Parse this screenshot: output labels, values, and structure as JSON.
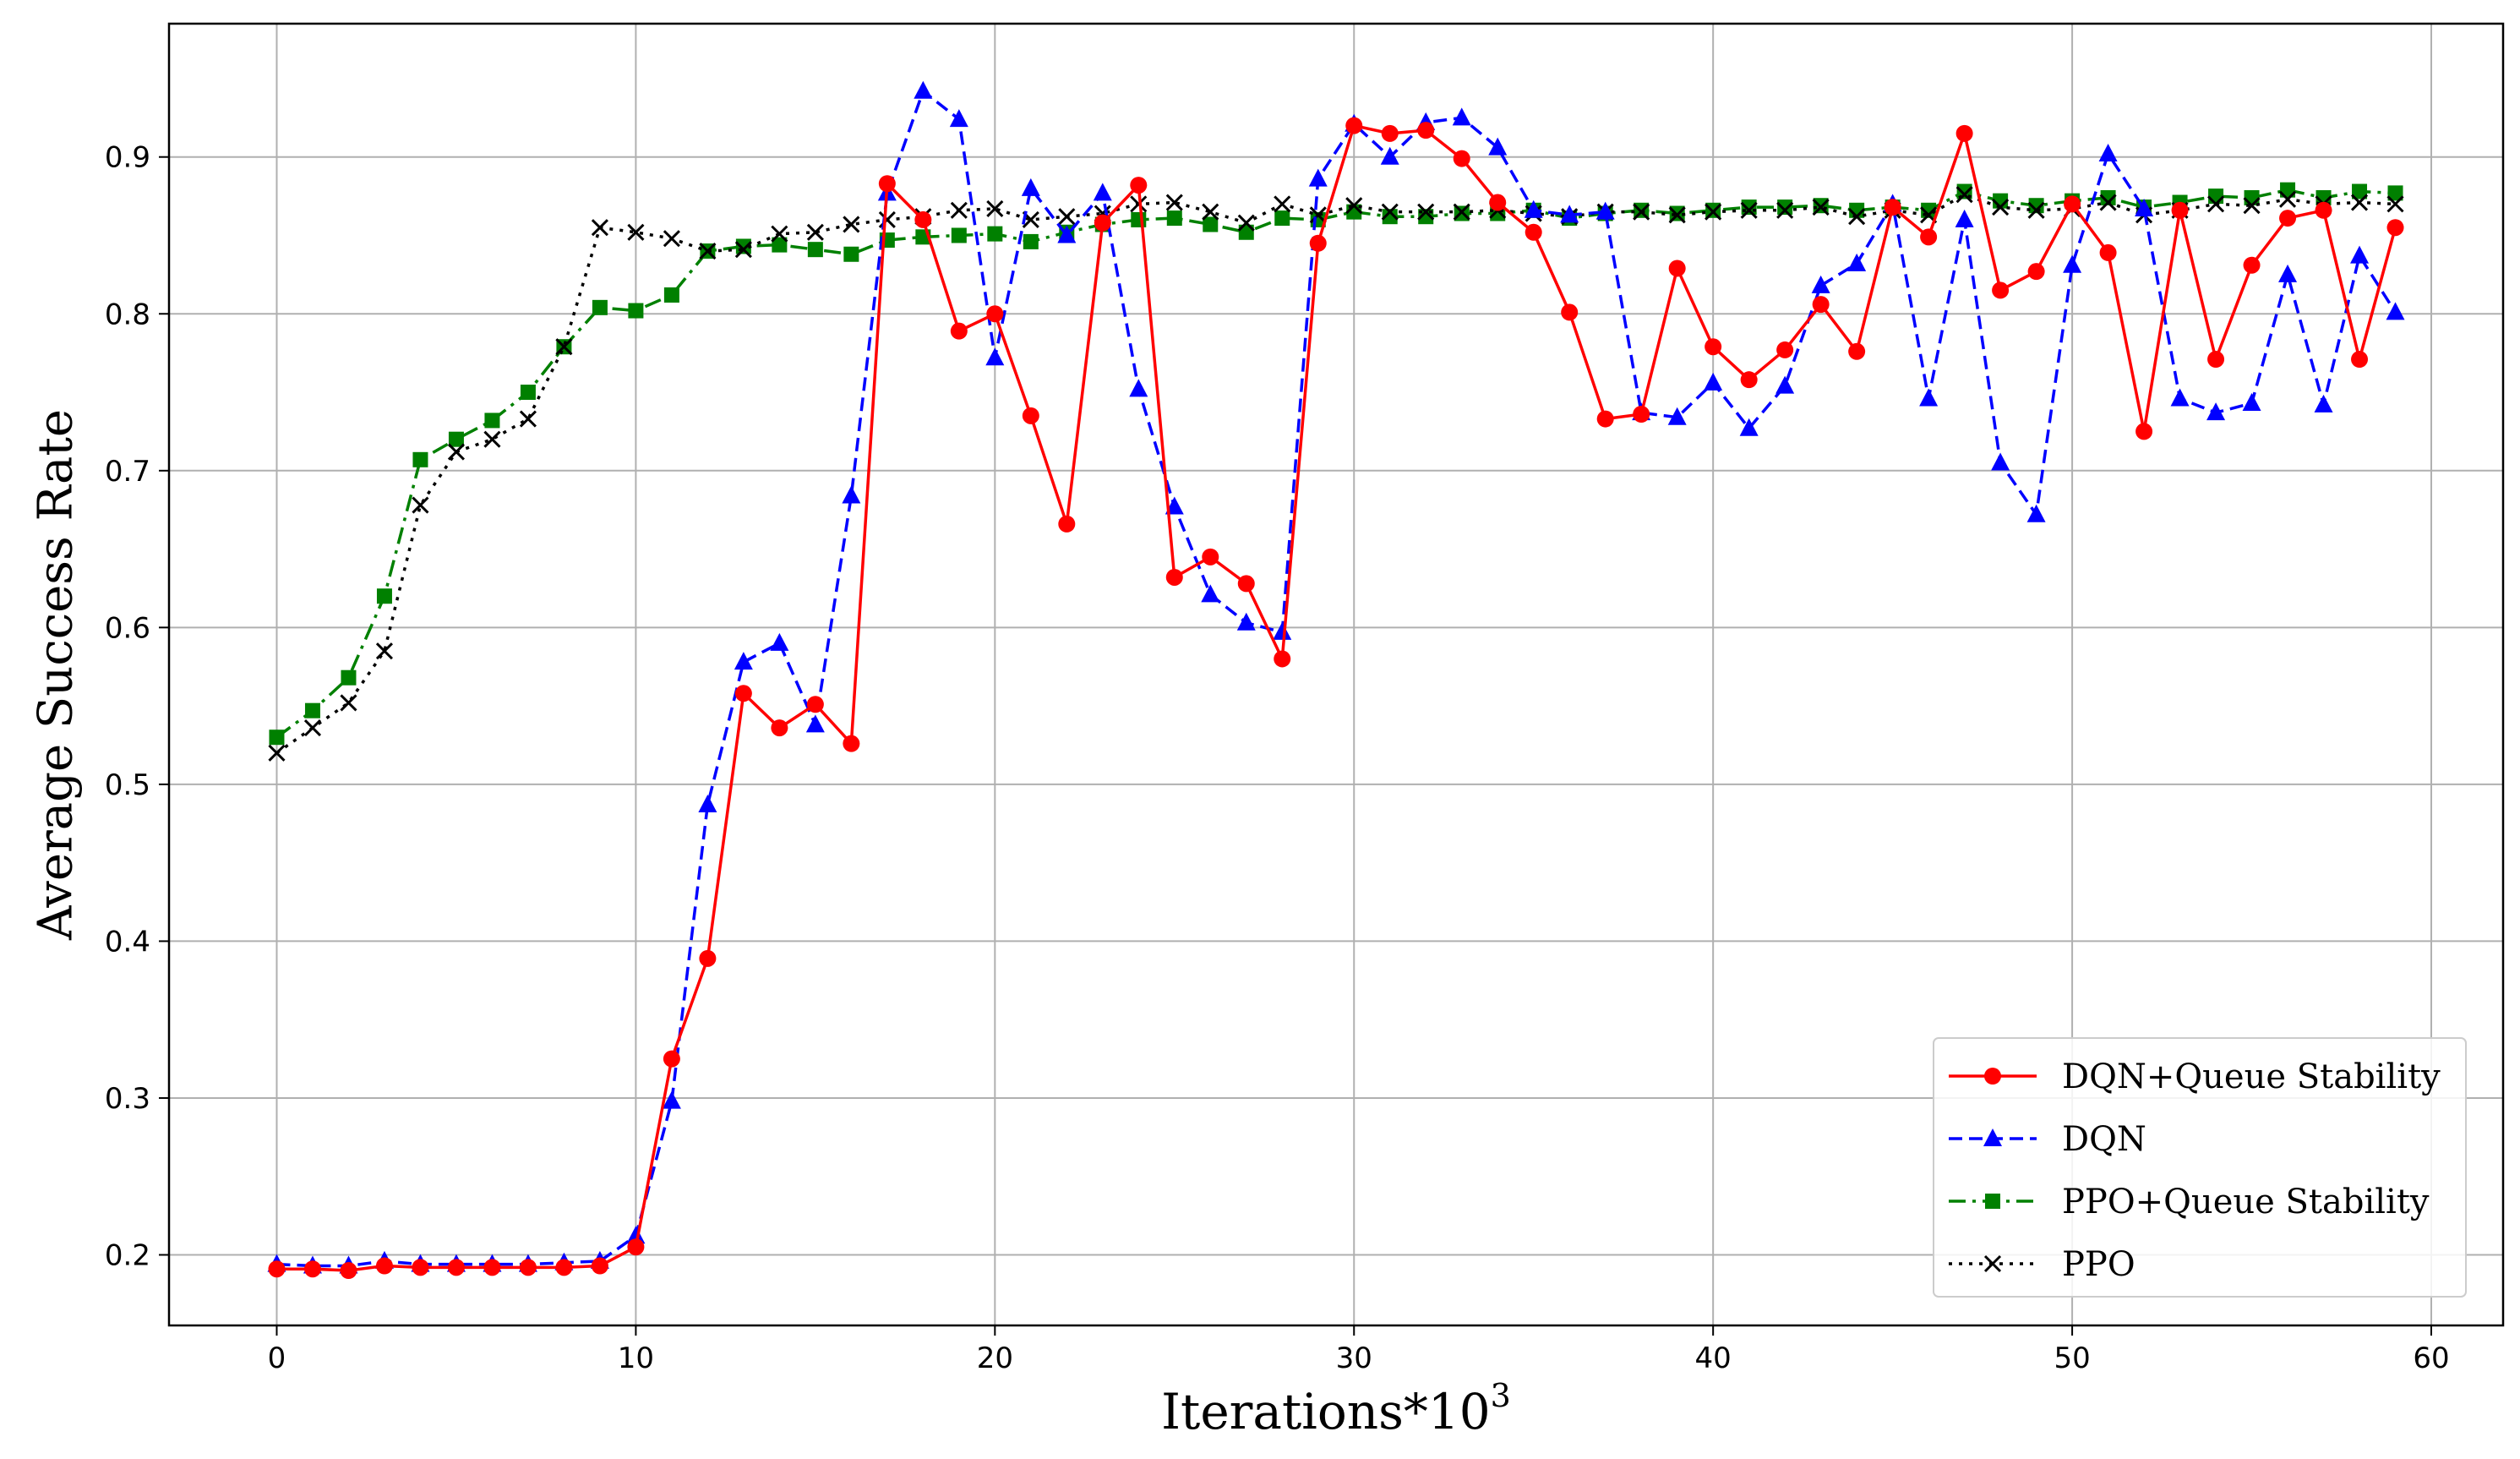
{
  "chart_data": {
    "type": "line",
    "xlabel": "Iterations*10",
    "xlabel_exp": "3",
    "ylabel": "Average Success Rate",
    "xlim": [
      -3,
      62
    ],
    "ylim": [
      0.155,
      0.985
    ],
    "xticks": [
      0,
      10,
      20,
      30,
      40,
      50,
      60
    ],
    "yticks": [
      0.2,
      0.3,
      0.4,
      0.5,
      0.6,
      0.7,
      0.8,
      0.9
    ],
    "ytick_labels": [
      "0.2",
      "0.3",
      "0.4",
      "0.5",
      "0.6",
      "0.7",
      "0.8",
      "0.9"
    ],
    "grid": true,
    "legend_position": "lower-right",
    "series": [
      {
        "name": "DQN+Queue Stability",
        "color": "#ff0000",
        "dash": "solid",
        "marker": "circle",
        "values": [
          0.191,
          0.191,
          0.19,
          0.193,
          0.192,
          0.192,
          0.192,
          0.192,
          0.192,
          0.193,
          0.205,
          0.325,
          0.389,
          0.558,
          0.536,
          0.551,
          0.526,
          0.883,
          0.86,
          0.789,
          0.8,
          0.735,
          0.666,
          0.858,
          0.882,
          0.632,
          0.645,
          0.628,
          0.58,
          0.845,
          0.92,
          0.915,
          0.917,
          0.899,
          0.871,
          0.852,
          0.801,
          0.733,
          0.736,
          0.829,
          0.779,
          0.758,
          0.777,
          0.806,
          0.776,
          0.868,
          0.849,
          0.915,
          0.815,
          0.827,
          0.87,
          0.839,
          0.725,
          0.866,
          0.771,
          0.831,
          0.861,
          0.866,
          0.771,
          0.855
        ]
      },
      {
        "name": "DQN",
        "color": "#0000ff",
        "dash": "dashed",
        "marker": "triangle",
        "values": [
          0.194,
          0.193,
          0.193,
          0.196,
          0.194,
          0.194,
          0.194,
          0.194,
          0.195,
          0.196,
          0.212,
          0.298,
          0.487,
          0.578,
          0.59,
          0.538,
          0.684,
          0.877,
          0.942,
          0.924,
          0.772,
          0.88,
          0.85,
          0.877,
          0.752,
          0.677,
          0.621,
          0.603,
          0.597,
          0.886,
          0.921,
          0.9,
          0.922,
          0.925,
          0.906,
          0.866,
          0.863,
          0.865,
          0.737,
          0.734,
          0.756,
          0.727,
          0.754,
          0.818,
          0.832,
          0.87,
          0.746,
          0.86,
          0.705,
          0.672,
          0.831,
          0.902,
          0.867,
          0.746,
          0.737,
          0.743,
          0.825,
          0.742,
          0.837,
          0.801
        ]
      },
      {
        "name": "PPO+Queue Stability",
        "color": "#008000",
        "dash": "dashdot",
        "marker": "square",
        "values": [
          0.53,
          0.547,
          0.568,
          0.62,
          0.707,
          0.72,
          0.732,
          0.75,
          0.779,
          0.804,
          0.802,
          0.812,
          0.84,
          0.843,
          0.844,
          0.841,
          0.838,
          0.847,
          0.849,
          0.85,
          0.851,
          0.846,
          0.852,
          0.857,
          0.86,
          0.861,
          0.857,
          0.852,
          0.861,
          0.86,
          0.865,
          0.862,
          0.862,
          0.864,
          0.864,
          0.866,
          0.861,
          0.864,
          0.866,
          0.864,
          0.866,
          0.868,
          0.868,
          0.869,
          0.866,
          0.868,
          0.866,
          0.878,
          0.872,
          0.869,
          0.872,
          0.874,
          0.868,
          0.871,
          0.875,
          0.874,
          0.879,
          0.874,
          0.878,
          0.877
        ]
      },
      {
        "name": "PPO",
        "color": "#000000",
        "dash": "dotted",
        "marker": "x",
        "values": [
          0.52,
          0.536,
          0.552,
          0.585,
          0.678,
          0.712,
          0.72,
          0.733,
          0.779,
          0.855,
          0.852,
          0.848,
          0.84,
          0.841,
          0.851,
          0.852,
          0.857,
          0.86,
          0.862,
          0.866,
          0.867,
          0.86,
          0.862,
          0.864,
          0.87,
          0.871,
          0.865,
          0.858,
          0.87,
          0.863,
          0.869,
          0.865,
          0.865,
          0.865,
          0.866,
          0.864,
          0.862,
          0.865,
          0.865,
          0.863,
          0.865,
          0.866,
          0.866,
          0.868,
          0.862,
          0.866,
          0.863,
          0.876,
          0.868,
          0.866,
          0.867,
          0.871,
          0.863,
          0.866,
          0.87,
          0.869,
          0.873,
          0.87,
          0.871,
          0.87
        ]
      }
    ]
  }
}
